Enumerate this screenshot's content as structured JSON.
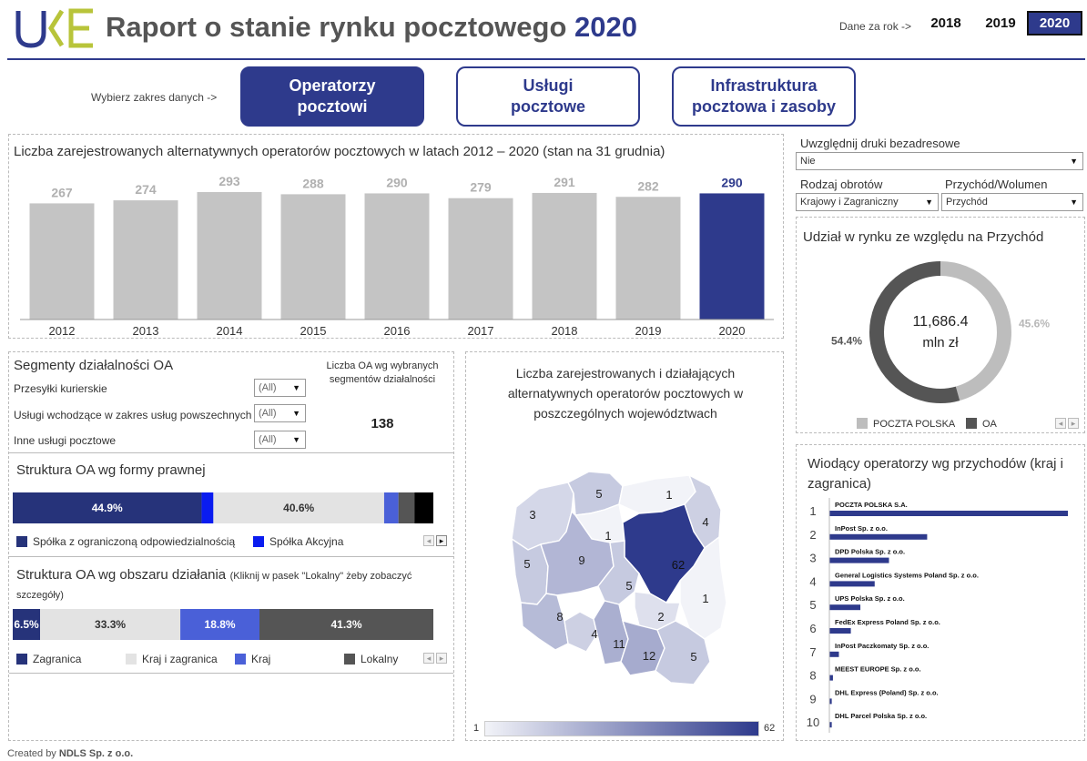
{
  "header": {
    "title": "Raport o stanie rynku pocztowego",
    "title_year": "2020",
    "year_selector_label": "Dane za rok ->",
    "years": [
      "2018",
      "2019",
      "2020"
    ],
    "selected_year": "2020"
  },
  "nav": {
    "choose_label": "Wybierz zakres danych ->",
    "buttons": [
      {
        "label": "Operatorzy pocztowi"
      },
      {
        "label": "Usługi pocztowe"
      },
      {
        "label": "Infrastruktura pocztowa i zasoby"
      }
    ]
  },
  "filters": {
    "unaddressed_label": "Uwzględnij druki bezadresowe",
    "unaddressed_value": "Nie",
    "turnover_label": "Rodzaj obrotów",
    "turnover_value": "Krajowy i Zagraniczny",
    "metric_label": "Przychód/Wolumen",
    "metric_value": "Przychód"
  },
  "operators_chart": {
    "title": "Liczba zarejestrowanych alternatywnych operatorów pocztowych w latach 2012 – 2020  (stan na 31 grudnia)",
    "highlight_color": "#2e3a8c",
    "base_color": "#c4c4c4"
  },
  "segments": {
    "title": "Segmenty działalności OA",
    "count_label": "Liczba OA wg wybranych segmentów działalności",
    "count_value": "138",
    "rows": [
      {
        "label": "Przesyłki kurierskie",
        "value": "(All)"
      },
      {
        "label": "Usługi wchodzące w zakres usług powszechnych",
        "value": "(All)"
      },
      {
        "label": "Inne usługi pocztowe",
        "value": "(All)"
      }
    ]
  },
  "legal_form": {
    "title": "Struktura OA wg formy prawnej",
    "legend": [
      {
        "label": "Spółka z ograniczoną odpowiedzialnością",
        "color": "#26337a"
      },
      {
        "label": "Spółka Akcyjna",
        "color": "#0a1cf0"
      }
    ]
  },
  "area": {
    "title": "Struktura OA wg obszaru działania",
    "hint": "(Kliknij w pasek \"Lokalny\" żeby zobaczyć szczegóły)",
    "legend": [
      {
        "label": "Zagranica",
        "color": "#26337a"
      },
      {
        "label": "Kraj i zagranica",
        "color": "#e3e3e3"
      },
      {
        "label": "Kraj",
        "color": "#4a60d8"
      },
      {
        "label": "Lokalny",
        "color": "#555555"
      }
    ]
  },
  "map": {
    "title": "Liczba zarejestrowanych i działających alternatywnych operatorów pocztowych w poszczególnych województwach",
    "scale_min": "1",
    "scale_max": "62",
    "regions": [
      {
        "name": "zachodniopomorskie",
        "value": 3
      },
      {
        "name": "pomorskie",
        "value": 5
      },
      {
        "name": "warmińsko-mazurskie",
        "value": 1
      },
      {
        "name": "podlaskie",
        "value": 4
      },
      {
        "name": "kujawsko-pomorskie",
        "value": 1
      },
      {
        "name": "lubuskie",
        "value": 5
      },
      {
        "name": "wielkopolskie",
        "value": 9
      },
      {
        "name": "mazowieckie",
        "value": 62
      },
      {
        "name": "łódzkie",
        "value": 5
      },
      {
        "name": "lubelskie",
        "value": 1
      },
      {
        "name": "dolnośląskie",
        "value": 8
      },
      {
        "name": "opolskie",
        "value": 4
      },
      {
        "name": "świętokrzyskie",
        "value": 2
      },
      {
        "name": "śląskie",
        "value": 11
      },
      {
        "name": "małopolskie",
        "value": 12
      },
      {
        "name": "podkarpackie",
        "value": 5
      }
    ]
  },
  "market_share": {
    "title": "Udział w rynku ze względu na Przychód",
    "center_value": "11,686.4",
    "center_unit": "mln zł",
    "legend": [
      {
        "label": "POCZTA POLSKA",
        "color": "#bdbdbd"
      },
      {
        "label": "OA",
        "color": "#555555"
      }
    ]
  },
  "leaders": {
    "title": "Wiodący operatorzy wg przychodów (kraj i zagranica)",
    "bar_color": "#2e3a8c"
  },
  "chart_data": [
    {
      "type": "bar",
      "title": "Liczba zarejestrowanych alternatywnych operatorów pocztowych w latach 2012 – 2020  (stan na 31 grudnia)",
      "categories": [
        "2012",
        "2013",
        "2014",
        "2015",
        "2016",
        "2017",
        "2018",
        "2019",
        "2020"
      ],
      "values": [
        267,
        274,
        293,
        288,
        290,
        279,
        291,
        282,
        290
      ],
      "ylim": [
        0,
        293
      ],
      "grid": false
    },
    {
      "type": "bar",
      "title": "Struktura OA wg formy prawnej",
      "orientation": "stacked-horizontal",
      "segments": [
        {
          "value": 44.9,
          "label": "44.9%",
          "color": "#26337a"
        },
        {
          "value": 2.8,
          "label": "",
          "color": "#0a1cf0"
        },
        {
          "value": 40.6,
          "label": "40.6%",
          "color": "#e3e3e3"
        },
        {
          "value": 3.4,
          "label": "",
          "color": "#4a60d8"
        },
        {
          "value": 3.8,
          "label": "",
          "color": "#555555"
        },
        {
          "value": 4.5,
          "label": "",
          "color": "#000000"
        }
      ]
    },
    {
      "type": "bar",
      "title": "Struktura OA wg obszaru działania",
      "orientation": "stacked-horizontal",
      "segments": [
        {
          "value": 6.5,
          "label": "6.5%",
          "color": "#26337a"
        },
        {
          "value": 33.3,
          "label": "33.3%",
          "color": "#e3e3e3"
        },
        {
          "value": 18.8,
          "label": "18.8%",
          "color": "#4a60d8"
        },
        {
          "value": 41.3,
          "label": "41.3%",
          "color": "#555555"
        }
      ]
    },
    {
      "type": "pie",
      "title": "Udział w rynku ze względu na Przychód",
      "slices": [
        {
          "name": "POCZTA POLSKA",
          "value": 45.6,
          "label": "45.6%",
          "color": "#bdbdbd"
        },
        {
          "name": "OA",
          "value": 54.4,
          "label": "54.4%",
          "color": "#555555"
        }
      ]
    },
    {
      "type": "bar",
      "title": "Wiodący operatorzy wg przychodów (kraj i zagranica)",
      "orientation": "horizontal",
      "categories": [
        "POCZTA POLSKA S.A.",
        "InPost Sp. z o.o.",
        "DPD Polska Sp. z o.o.",
        "General Logistics Systems Poland Sp. z o.o.",
        "UPS Polska Sp. z o.o.",
        "FedEx Express Poland Sp. z o.o.",
        "InPost Paczkomaty Sp. z o.o.",
        "MEEST EUROPE Sp. z o.o.",
        "DHL Express (Poland)  Sp. z o.o.",
        "DHL Parcel Polska Sp. z o.o."
      ],
      "ranks": [
        "1",
        "2",
        "3",
        "4",
        "5",
        "6",
        "7",
        "8",
        "9",
        "10"
      ],
      "values": [
        100,
        41,
        25,
        19,
        13,
        9,
        4,
        1.5,
        1,
        1
      ]
    }
  ]
}
